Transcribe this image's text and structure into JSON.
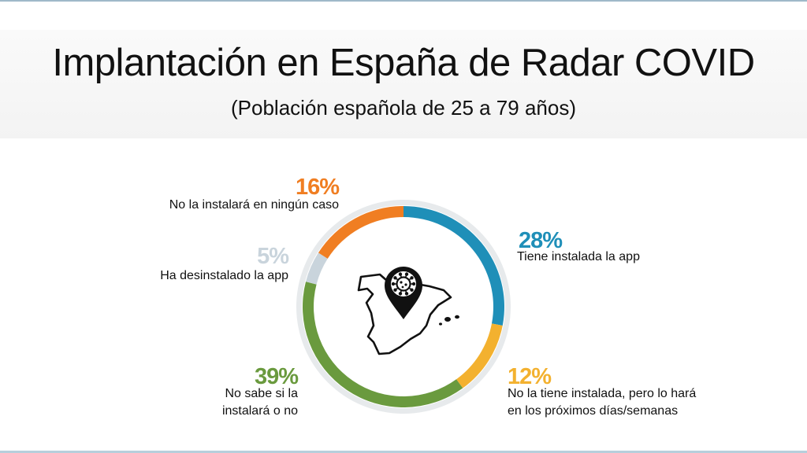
{
  "title": "Implantación en España de Radar COVID",
  "subtitle": "(Población española de 25 a 79 años)",
  "chart_data": {
    "type": "pie",
    "title": "Implantación en España de Radar COVID",
    "subtitle": "(Población española de 25 a 79 años)",
    "series": [
      {
        "name": "Tiene instalada la app",
        "value": 28,
        "label": "28%",
        "color": "#1f8fb8"
      },
      {
        "name": "No la tiene instalada, pero lo hará en los próximos días/semanas",
        "value": 12,
        "label": "12%",
        "color": "#f3b12f"
      },
      {
        "name": "No sabe si la instalará o no",
        "value": 39,
        "label": "39%",
        "color": "#6a9a3e"
      },
      {
        "name": "Ha desinstalado la app",
        "value": 5,
        "label": "5%",
        "color": "#c9d4dc"
      },
      {
        "name": "No la instalará en ningún caso",
        "value": 16,
        "label": "16%",
        "color": "#f07e22"
      }
    ]
  },
  "labels": {
    "tiene": {
      "pct": "28%",
      "l1": "Tiene instalada la app"
    },
    "hara": {
      "pct": "12%",
      "l1": "No la tiene instalada, pero lo hará",
      "l2": "en los próximos días/semanas"
    },
    "nosabe": {
      "pct": "39%",
      "l1": "No sabe si la",
      "l2": "instalará o no"
    },
    "desinst": {
      "pct": "5%",
      "l1": "Ha desinstalado la app"
    },
    "nunca": {
      "pct": "16%",
      "l1": "No la instalará en ningún caso"
    }
  },
  "icons": {
    "center": "spain-map-virus-pin-icon"
  }
}
